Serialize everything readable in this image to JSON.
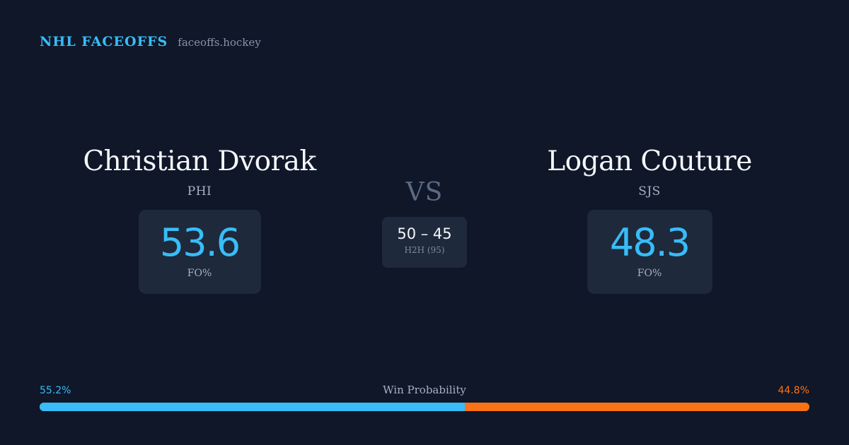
{
  "brand": {
    "name": "NHL FACEOFFS",
    "domain": "faceoffs.hockey"
  },
  "players": [
    {
      "name": "Christian Dvorak",
      "team": "PHI",
      "fo_pct": "53.6",
      "fo_label": "FO%"
    },
    {
      "name": "Logan Couture",
      "team": "SJS",
      "fo_pct": "48.3",
      "fo_label": "FO%"
    }
  ],
  "vs_label": "VS",
  "h2h": {
    "score": "50 – 45",
    "label": "H2H (95)"
  },
  "win_probability": {
    "title": "Win Probability",
    "left_label": "55.2%",
    "right_label": "44.8%",
    "left_value": 55.2,
    "right_value": 44.8
  },
  "colors": {
    "background": "#0f1729",
    "card": "#1e293b",
    "accent_blue": "#38bdf8",
    "accent_orange": "#f97316"
  }
}
